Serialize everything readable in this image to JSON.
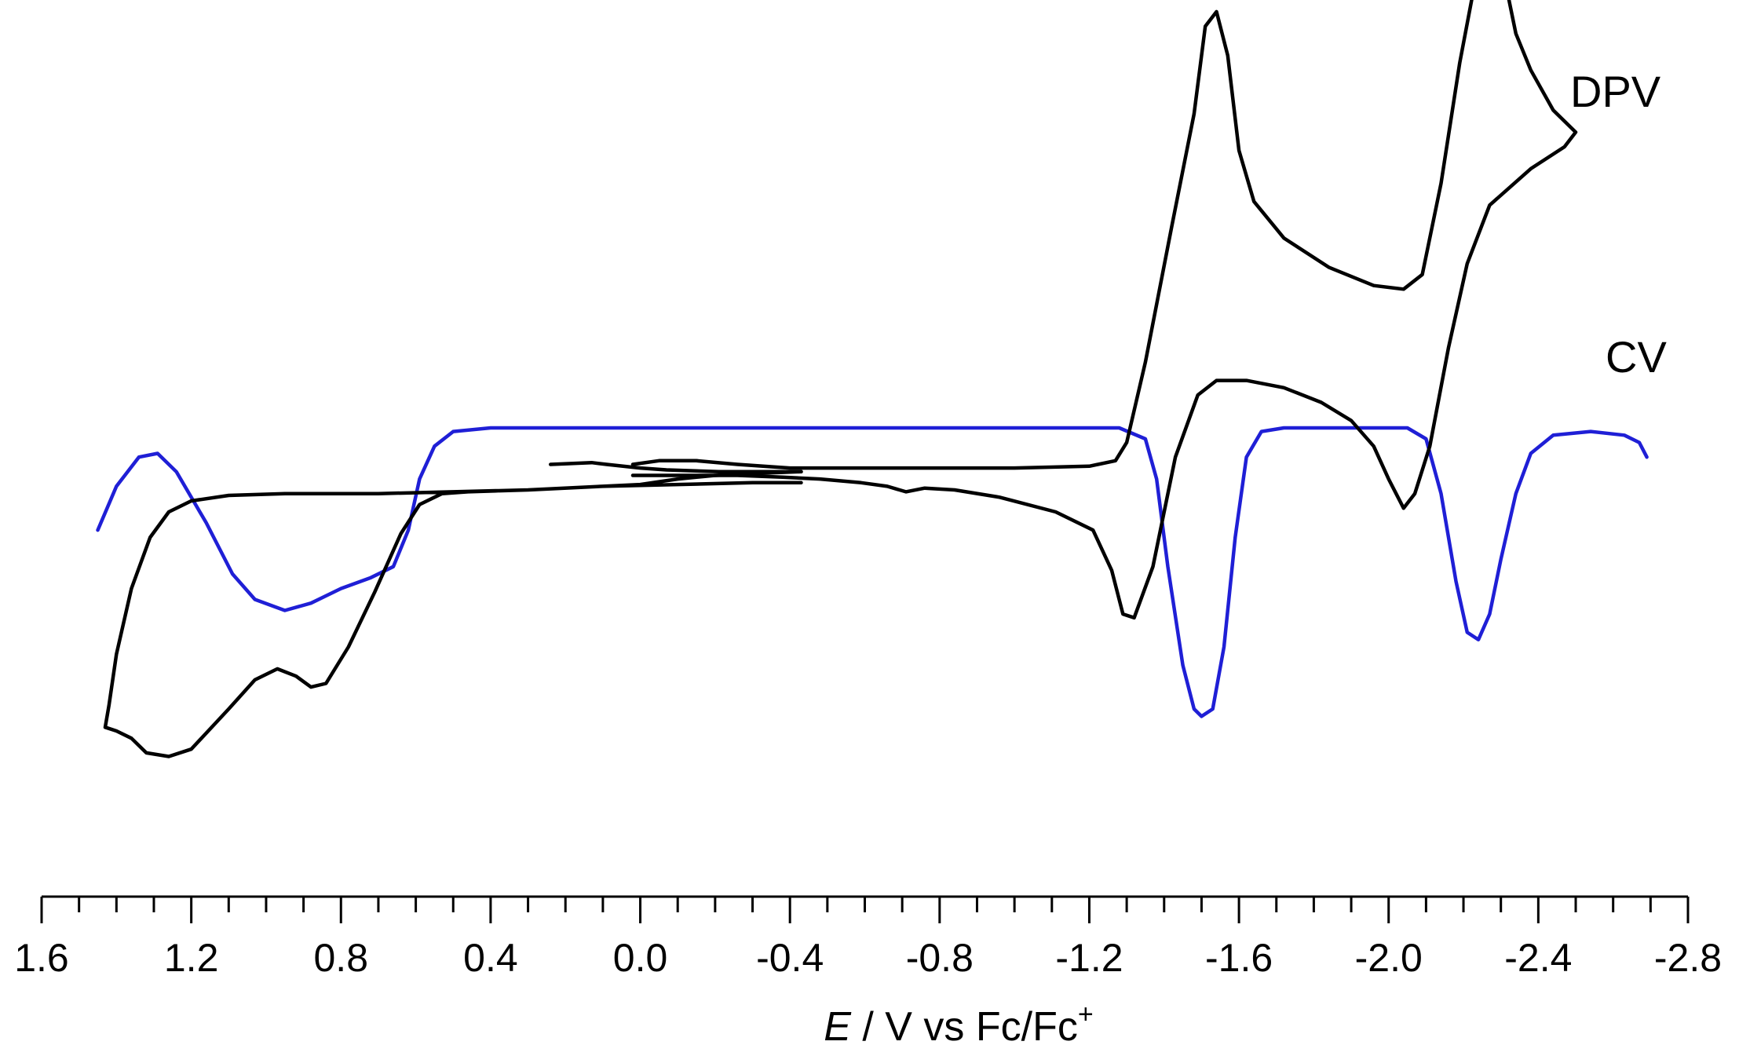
{
  "chart_data": {
    "type": "line",
    "xlabel_parts": {
      "symbol": "E",
      "rest": " / V vs Fc/Fc",
      "superscript": "+"
    },
    "xlim": [
      1.6,
      -2.8
    ],
    "x_major_ticks": [
      1.6,
      1.2,
      0.8,
      0.4,
      0.0,
      -0.4,
      -0.8,
      -1.2,
      -1.6,
      -2.0,
      -2.4,
      -2.8
    ],
    "x_tick_labels": [
      "1.6",
      "1.2",
      "0.8",
      "0.4",
      "0.0",
      "-0.4",
      "-0.8",
      "-1.2",
      "-1.6",
      "-2.0",
      "-2.4",
      "-2.8"
    ],
    "x_minor_step": 0.1,
    "y_units": "arbitrary (offset traces, no y-axis)",
    "series": [
      {
        "name": "DPV",
        "color": "#1f1fd6",
        "points": [
          [
            1.45,
            0.72
          ],
          [
            1.4,
            0.84
          ],
          [
            1.34,
            0.92
          ],
          [
            1.29,
            0.93
          ],
          [
            1.24,
            0.88
          ],
          [
            1.16,
            0.74
          ],
          [
            1.09,
            0.6
          ],
          [
            1.03,
            0.53
          ],
          [
            0.95,
            0.5
          ],
          [
            0.88,
            0.52
          ],
          [
            0.8,
            0.56
          ],
          [
            0.72,
            0.59
          ],
          [
            0.66,
            0.62
          ],
          [
            0.62,
            0.72
          ],
          [
            0.59,
            0.86
          ],
          [
            0.55,
            0.95
          ],
          [
            0.5,
            0.99
          ],
          [
            0.4,
            1.0
          ],
          [
            0.2,
            1.0
          ],
          [
            -0.4,
            1.0
          ],
          [
            -1.0,
            1.0
          ],
          [
            -1.28,
            1.0
          ],
          [
            -1.35,
            0.97
          ],
          [
            -1.38,
            0.86
          ],
          [
            -1.41,
            0.62
          ],
          [
            -1.45,
            0.35
          ],
          [
            -1.48,
            0.23
          ],
          [
            -1.5,
            0.21
          ],
          [
            -1.53,
            0.23
          ],
          [
            -1.56,
            0.4
          ],
          [
            -1.59,
            0.7
          ],
          [
            -1.62,
            0.92
          ],
          [
            -1.66,
            0.99
          ],
          [
            -1.72,
            1.0
          ],
          [
            -2.05,
            1.0
          ],
          [
            -2.1,
            0.97
          ],
          [
            -2.14,
            0.82
          ],
          [
            -2.18,
            0.58
          ],
          [
            -2.21,
            0.44
          ],
          [
            -2.24,
            0.42
          ],
          [
            -2.27,
            0.49
          ],
          [
            -2.3,
            0.64
          ],
          [
            -2.34,
            0.82
          ],
          [
            -2.38,
            0.93
          ],
          [
            -2.44,
            0.98
          ],
          [
            -2.54,
            0.99
          ],
          [
            -2.63,
            0.98
          ],
          [
            -2.67,
            0.96
          ],
          [
            -2.69,
            0.92
          ]
        ]
      },
      {
        "name": "CV",
        "color": "#000000",
        "segments": [
          [
            [
              0.02,
              0.9
            ],
            [
              -0.05,
              0.91
            ],
            [
              -0.15,
              0.91
            ],
            [
              -0.26,
              0.9
            ],
            [
              -0.4,
              0.89
            ],
            [
              -0.7,
              0.89
            ],
            [
              -1.0,
              0.89
            ],
            [
              -1.2,
              0.895
            ],
            [
              -1.27,
              0.91
            ],
            [
              -1.3,
              0.96
            ],
            [
              -1.35,
              1.18
            ],
            [
              -1.42,
              1.55
            ],
            [
              -1.48,
              1.86
            ],
            [
              -1.51,
              2.1
            ],
            [
              -1.54,
              2.14
            ],
            [
              -1.57,
              2.02
            ],
            [
              -1.6,
              1.76
            ],
            [
              -1.64,
              1.62
            ],
            [
              -1.72,
              1.52
            ],
            [
              -1.84,
              1.44
            ],
            [
              -1.96,
              1.39
            ],
            [
              -2.04,
              1.38
            ],
            [
              -2.09,
              1.42
            ],
            [
              -2.14,
              1.67
            ],
            [
              -2.19,
              2.0
            ],
            [
              -2.24,
              2.27
            ],
            [
              -2.27,
              2.34
            ],
            [
              -2.3,
              2.28
            ],
            [
              -2.34,
              2.08
            ],
            [
              -2.38,
              1.98
            ],
            [
              -2.44,
              1.87
            ],
            [
              -2.5,
              1.81
            ],
            [
              -2.47,
              1.77
            ],
            [
              -2.38,
              1.71
            ],
            [
              -2.27,
              1.61
            ],
            [
              -2.21,
              1.45
            ],
            [
              -2.16,
              1.22
            ],
            [
              -2.11,
              0.95
            ],
            [
              -2.07,
              0.82
            ],
            [
              -2.04,
              0.78
            ],
            [
              -2.0,
              0.86
            ],
            [
              -1.96,
              0.95
            ],
            [
              -1.9,
              1.02
            ],
            [
              -1.82,
              1.07
            ],
            [
              -1.72,
              1.11
            ],
            [
              -1.62,
              1.13
            ],
            [
              -1.54,
              1.13
            ],
            [
              -1.49,
              1.09
            ],
            [
              -1.43,
              0.92
            ],
            [
              -1.37,
              0.62
            ],
            [
              -1.32,
              0.48
            ],
            [
              -1.29,
              0.49
            ],
            [
              -1.26,
              0.61
            ],
            [
              -1.21,
              0.72
            ],
            [
              -1.11,
              0.77
            ],
            [
              -0.96,
              0.81
            ],
            [
              -0.84,
              0.83
            ],
            [
              -0.76,
              0.835
            ],
            [
              -0.71,
              0.825
            ],
            [
              -0.66,
              0.84
            ],
            [
              -0.59,
              0.85
            ],
            [
              -0.48,
              0.86
            ],
            [
              -0.38,
              0.865
            ],
            [
              -0.26,
              0.87
            ],
            [
              0.02,
              0.87
            ]
          ],
          [
            [
              0.24,
              0.9
            ],
            [
              0.13,
              0.905
            ],
            [
              0.09,
              0.9
            ],
            [
              0.0,
              0.89
            ],
            [
              -0.07,
              0.885
            ],
            [
              -0.21,
              0.88
            ],
            [
              -0.34,
              0.88
            ],
            [
              -0.43,
              0.88
            ]
          ],
          [
            [
              -0.43,
              0.88
            ],
            [
              -0.3,
              0.875
            ],
            [
              -0.2,
              0.87
            ],
            [
              -0.1,
              0.86
            ],
            [
              0.0,
              0.845
            ],
            [
              0.1,
              0.84
            ],
            [
              0.3,
              0.83
            ],
            [
              0.5,
              0.825
            ],
            [
              0.7,
              0.82
            ],
            [
              0.8,
              0.82
            ],
            [
              0.95,
              0.82
            ],
            [
              1.1,
              0.815
            ],
            [
              1.2,
              0.8
            ],
            [
              1.26,
              0.77
            ],
            [
              1.31,
              0.7
            ],
            [
              1.36,
              0.56
            ],
            [
              1.4,
              0.38
            ],
            [
              1.42,
              0.24
            ],
            [
              1.43,
              0.18
            ],
            [
              1.4,
              0.17
            ],
            [
              1.36,
              0.15
            ],
            [
              1.32,
              0.11
            ],
            [
              1.26,
              0.1
            ],
            [
              1.2,
              0.12
            ],
            [
              1.1,
              0.23
            ],
            [
              1.03,
              0.31
            ],
            [
              0.97,
              0.34
            ],
            [
              0.92,
              0.32
            ],
            [
              0.88,
              0.29
            ],
            [
              0.84,
              0.3
            ],
            [
              0.78,
              0.4
            ],
            [
              0.71,
              0.55
            ],
            [
              0.64,
              0.71
            ],
            [
              0.59,
              0.79
            ],
            [
              0.53,
              0.82
            ],
            [
              0.46,
              0.825
            ],
            [
              0.3,
              0.83
            ],
            [
              0.1,
              0.84
            ],
            [
              -0.1,
              0.845
            ],
            [
              -0.3,
              0.85
            ],
            [
              -0.43,
              0.85
            ]
          ]
        ]
      }
    ],
    "annotations": [
      "DPV",
      "CV"
    ]
  }
}
